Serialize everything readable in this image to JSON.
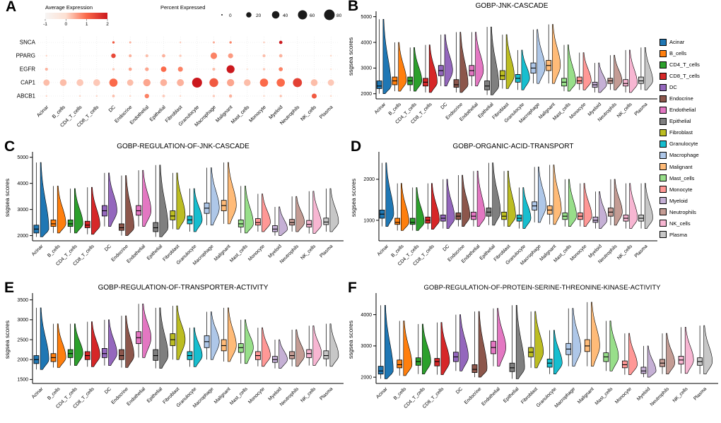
{
  "cell_types": [
    "Acinar",
    "B_cells",
    "CD4_T_cells",
    "CD8_T_cells",
    "DC",
    "Endocrine",
    "Endothelial",
    "Epithelial",
    "Fibroblast",
    "Granulocyte",
    "Macrophage",
    "Malignant",
    "Mast_cells",
    "Monocyte",
    "Myeloid",
    "Neutrophils",
    "NK_cells",
    "Plasma"
  ],
  "cell_colors": [
    "#1f77b4",
    "#ff7f0e",
    "#2ca02c",
    "#d62728",
    "#9467bd",
    "#8c564b",
    "#e377c2",
    "#7f7f7f",
    "#bcbd22",
    "#17becf",
    "#aec7e8",
    "#ffbb78",
    "#98df8a",
    "#ff9896",
    "#c5b0d5",
    "#c49c94",
    "#f7b6d2",
    "#c7c7c7"
  ],
  "chart_data": [
    {
      "id": "A",
      "type": "dotplot",
      "genes": [
        "SNCA",
        "PPARG",
        "EGFR",
        "CAP1",
        "ABCB1"
      ],
      "color_legend": {
        "title": "Average Expression",
        "ticks": [
          -1,
          0,
          1,
          2
        ]
      },
      "size_legend": {
        "title": "Percent Expressed",
        "ticks": [
          0,
          20,
          40,
          60,
          80
        ]
      },
      "percent_expressed": [
        [
          0,
          0,
          0,
          0,
          4,
          3,
          0,
          0,
          2,
          0,
          3,
          4,
          0,
          2,
          8,
          0,
          0,
          0
        ],
        [
          2,
          0,
          0,
          0,
          15,
          6,
          6,
          8,
          4,
          0,
          30,
          18,
          0,
          6,
          8,
          0,
          0,
          2
        ],
        [
          6,
          0,
          0,
          0,
          4,
          8,
          10,
          22,
          18,
          0,
          6,
          45,
          2,
          4,
          12,
          0,
          0,
          2
        ],
        [
          28,
          32,
          33,
          33,
          48,
          28,
          38,
          33,
          35,
          70,
          55,
          38,
          32,
          48,
          48,
          58,
          33,
          28
        ],
        [
          2,
          0,
          2,
          2,
          5,
          2,
          14,
          5,
          2,
          0,
          4,
          7,
          0,
          2,
          4,
          0,
          18,
          2
        ]
      ],
      "average_expression": [
        [
          0,
          0,
          0,
          0,
          1.2,
          0.4,
          0,
          0,
          0.2,
          0,
          0.5,
          0.8,
          0,
          0.2,
          2,
          0,
          0,
          0
        ],
        [
          0.1,
          0,
          0,
          0,
          1.4,
          0.4,
          0.3,
          0.4,
          0.2,
          0,
          0.8,
          0.6,
          0,
          0.3,
          0.4,
          0,
          0,
          0.1
        ],
        [
          0.4,
          0,
          0,
          0,
          0.2,
          0.5,
          0.5,
          1.0,
          0.8,
          0,
          0.3,
          2.0,
          0,
          0.2,
          0.8,
          0,
          0,
          0
        ],
        [
          0.3,
          0.3,
          0.2,
          0.2,
          1.0,
          0.3,
          0.5,
          0.4,
          0.4,
          2.0,
          1.2,
          0.5,
          0.3,
          1.0,
          1.0,
          1.5,
          0.3,
          0.2
        ],
        [
          0.1,
          0,
          0.1,
          0.1,
          0.3,
          0.1,
          0.8,
          0.2,
          0.1,
          0,
          0.2,
          0.4,
          0,
          0.1,
          0.3,
          0,
          1.2,
          0.1
        ]
      ]
    },
    {
      "id": "B",
      "type": "violin",
      "title": "GOBP-JNK-CASCADE",
      "ylabel": "ssgsea scores",
      "ylim": [
        1800,
        5100
      ],
      "yticks": [
        2000,
        3000,
        4000,
        5000
      ],
      "stats": [
        [
          2000,
          2200,
          2300,
          2500,
          4900
        ],
        [
          2100,
          2350,
          2500,
          2650,
          4000
        ],
        [
          2100,
          2350,
          2500,
          2650,
          3800
        ],
        [
          2050,
          2300,
          2450,
          2600,
          3900
        ],
        [
          2300,
          2700,
          2900,
          3100,
          4300
        ],
        [
          2050,
          2250,
          2350,
          2550,
          4400
        ],
        [
          2300,
          2700,
          2900,
          3100,
          4400
        ],
        [
          1950,
          2150,
          2300,
          2500,
          4600
        ],
        [
          2200,
          2550,
          2700,
          2900,
          4300
        ],
        [
          2150,
          2450,
          2600,
          2750,
          3700
        ],
        [
          2400,
          2800,
          3000,
          3200,
          4500
        ],
        [
          2400,
          2900,
          3100,
          3300,
          4700
        ],
        [
          2100,
          2300,
          2450,
          2600,
          3900
        ],
        [
          2150,
          2400,
          2500,
          2650,
          3600
        ],
        [
          2050,
          2250,
          2350,
          2450,
          3200
        ],
        [
          2150,
          2400,
          2500,
          2600,
          3500
        ],
        [
          2050,
          2300,
          2400,
          2550,
          3700
        ],
        [
          2150,
          2400,
          2500,
          2650,
          3800
        ]
      ]
    },
    {
      "id": "C",
      "type": "violin",
      "title": "GOBP-REGULATION-OF-JNK-CASCADE",
      "ylabel": "ssgsea scores",
      "ylim": [
        1800,
        5100
      ],
      "yticks": [
        2000,
        3000,
        4000,
        5000
      ],
      "stats": [
        [
          1950,
          2100,
          2250,
          2400,
          4800
        ],
        [
          2100,
          2350,
          2450,
          2600,
          3900
        ],
        [
          2100,
          2350,
          2450,
          2600,
          3800
        ],
        [
          2050,
          2300,
          2400,
          2550,
          3850
        ],
        [
          2350,
          2750,
          2950,
          3150,
          4400
        ],
        [
          2000,
          2200,
          2300,
          2450,
          4300
        ],
        [
          2350,
          2780,
          2950,
          3150,
          4500
        ],
        [
          1950,
          2150,
          2300,
          2500,
          4700
        ],
        [
          2250,
          2600,
          2750,
          2950,
          4400
        ],
        [
          2150,
          2450,
          2600,
          2750,
          3800
        ],
        [
          2400,
          2850,
          3050,
          3250,
          4600
        ],
        [
          2450,
          2950,
          3150,
          3350,
          4800
        ],
        [
          2100,
          2330,
          2450,
          2600,
          3900
        ],
        [
          2150,
          2400,
          2500,
          2650,
          3600
        ],
        [
          2000,
          2150,
          2250,
          2380,
          3100
        ],
        [
          2150,
          2400,
          2500,
          2620,
          3500
        ],
        [
          2080,
          2330,
          2430,
          2580,
          3700
        ],
        [
          2150,
          2420,
          2520,
          2670,
          3800
        ]
      ]
    },
    {
      "id": "D",
      "type": "violin",
      "title": "GOBP-ORGANIC-ACID-TRANSPORT",
      "ylabel": "ssgsea scores",
      "ylim": [
        500,
        2600
      ],
      "yticks": [
        1000,
        2000
      ],
      "stats": [
        [
          850,
          1050,
          1150,
          1250,
          2400
        ],
        [
          750,
          900,
          950,
          1050,
          1900
        ],
        [
          750,
          900,
          950,
          1050,
          1800
        ],
        [
          780,
          930,
          1000,
          1080,
          1900
        ],
        [
          800,
          980,
          1050,
          1130,
          2000
        ],
        [
          850,
          1020,
          1100,
          1180,
          2100
        ],
        [
          850,
          1020,
          1100,
          1200,
          2200
        ],
        [
          880,
          1100,
          1200,
          1300,
          2400
        ],
        [
          850,
          1020,
          1100,
          1200,
          2200
        ],
        [
          800,
          980,
          1050,
          1130,
          1800
        ],
        [
          950,
          1250,
          1350,
          1450,
          2300
        ],
        [
          900,
          1150,
          1250,
          1350,
          2350
        ],
        [
          850,
          1020,
          1100,
          1180,
          2000
        ],
        [
          850,
          1020,
          1100,
          1180,
          1900
        ],
        [
          800,
          950,
          1000,
          1080,
          1700
        ],
        [
          880,
          1100,
          1200,
          1300,
          2000
        ],
        [
          800,
          980,
          1050,
          1130,
          1900
        ],
        [
          800,
          980,
          1050,
          1130,
          1900
        ]
      ]
    },
    {
      "id": "E",
      "type": "violin",
      "title": "GOBP-REGULATION-OF-TRANSPORTER-ACTIVITY",
      "ylabel": "ssgsea scores",
      "ylim": [
        1400,
        3600
      ],
      "yticks": [
        1500,
        2000,
        2500,
        3000,
        3500
      ],
      "stats": [
        [
          1750,
          1900,
          2000,
          2100,
          3300
        ],
        [
          1800,
          1950,
          2050,
          2150,
          2900
        ],
        [
          1850,
          2050,
          2150,
          2250,
          2900
        ],
        [
          1820,
          2000,
          2100,
          2200,
          2950
        ],
        [
          1850,
          2050,
          2150,
          2280,
          3000
        ],
        [
          1800,
          2000,
          2100,
          2250,
          3100
        ],
        [
          2050,
          2400,
          2550,
          2700,
          3400
        ],
        [
          1780,
          1980,
          2100,
          2250,
          3300
        ],
        [
          2000,
          2350,
          2500,
          2650,
          3350
        ],
        [
          1820,
          2000,
          2100,
          2200,
          2800
        ],
        [
          2000,
          2300,
          2450,
          2600,
          3200
        ],
        [
          1950,
          2220,
          2350,
          2500,
          3300
        ],
        [
          1900,
          2180,
          2300,
          2400,
          3000
        ],
        [
          1830,
          2000,
          2100,
          2200,
          2800
        ],
        [
          1780,
          1930,
          2000,
          2080,
          2500
        ],
        [
          1830,
          2020,
          2100,
          2200,
          2750
        ],
        [
          1850,
          2050,
          2150,
          2250,
          2850
        ],
        [
          1830,
          2020,
          2100,
          2220,
          2900
        ]
      ]
    },
    {
      "id": "F",
      "type": "violin",
      "title": "GOBP-REGULATION-OF-PROTEIN-SERINE-THREONINE-KINASE-ACTIVITY",
      "ylabel": "ssgsea scores",
      "ylim": [
        1800,
        4600
      ],
      "yticks": [
        2000,
        3000,
        4000
      ],
      "stats": [
        [
          1950,
          2100,
          2200,
          2350,
          4300
        ],
        [
          2050,
          2300,
          2400,
          2550,
          3800
        ],
        [
          2100,
          2380,
          2500,
          2620,
          3700
        ],
        [
          2080,
          2360,
          2500,
          2600,
          3750
        ],
        [
          2200,
          2500,
          2650,
          2800,
          4000
        ],
        [
          2000,
          2150,
          2250,
          2400,
          4100
        ],
        [
          2350,
          2750,
          2950,
          3150,
          4200
        ],
        [
          1950,
          2180,
          2300,
          2450,
          4300
        ],
        [
          2300,
          2650,
          2800,
          2950,
          4100
        ],
        [
          2100,
          2320,
          2450,
          2580,
          3500
        ],
        [
          2350,
          2720,
          2900,
          3080,
          4200
        ],
        [
          2350,
          2820,
          3000,
          3200,
          4400
        ],
        [
          2200,
          2500,
          2650,
          2780,
          3800
        ],
        [
          2080,
          2300,
          2400,
          2520,
          3400
        ],
        [
          2000,
          2120,
          2200,
          2320,
          3000
        ],
        [
          2100,
          2340,
          2450,
          2570,
          3400
        ],
        [
          2120,
          2420,
          2550,
          2670,
          3600
        ],
        [
          2100,
          2380,
          2500,
          2620,
          3650
        ]
      ]
    }
  ]
}
